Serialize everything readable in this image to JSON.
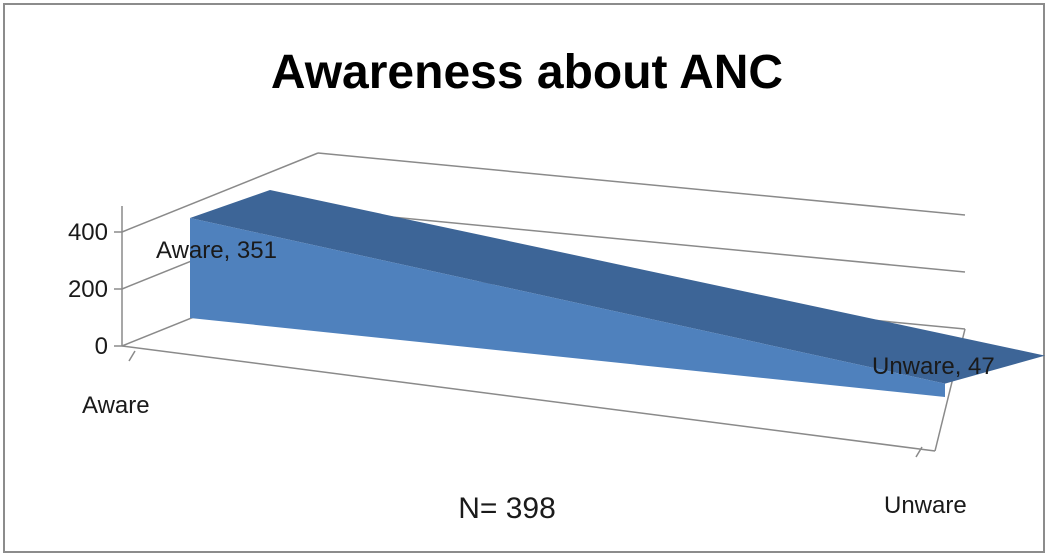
{
  "chart_data": {
    "type": "area",
    "style": "3d",
    "title": "Awareness about ANC",
    "categories": [
      "Aware",
      "Unware"
    ],
    "values": [
      351,
      47
    ],
    "data_labels": [
      "Aware, 351",
      "Unware, 47"
    ],
    "yticks": [
      0,
      200,
      400
    ],
    "ylim": [
      0,
      400
    ],
    "grid": true,
    "legend": "none",
    "colors": {
      "front": "#4f81bd",
      "top": "#3d6597",
      "end": "#3a5f8f"
    },
    "note": "N= 398"
  }
}
